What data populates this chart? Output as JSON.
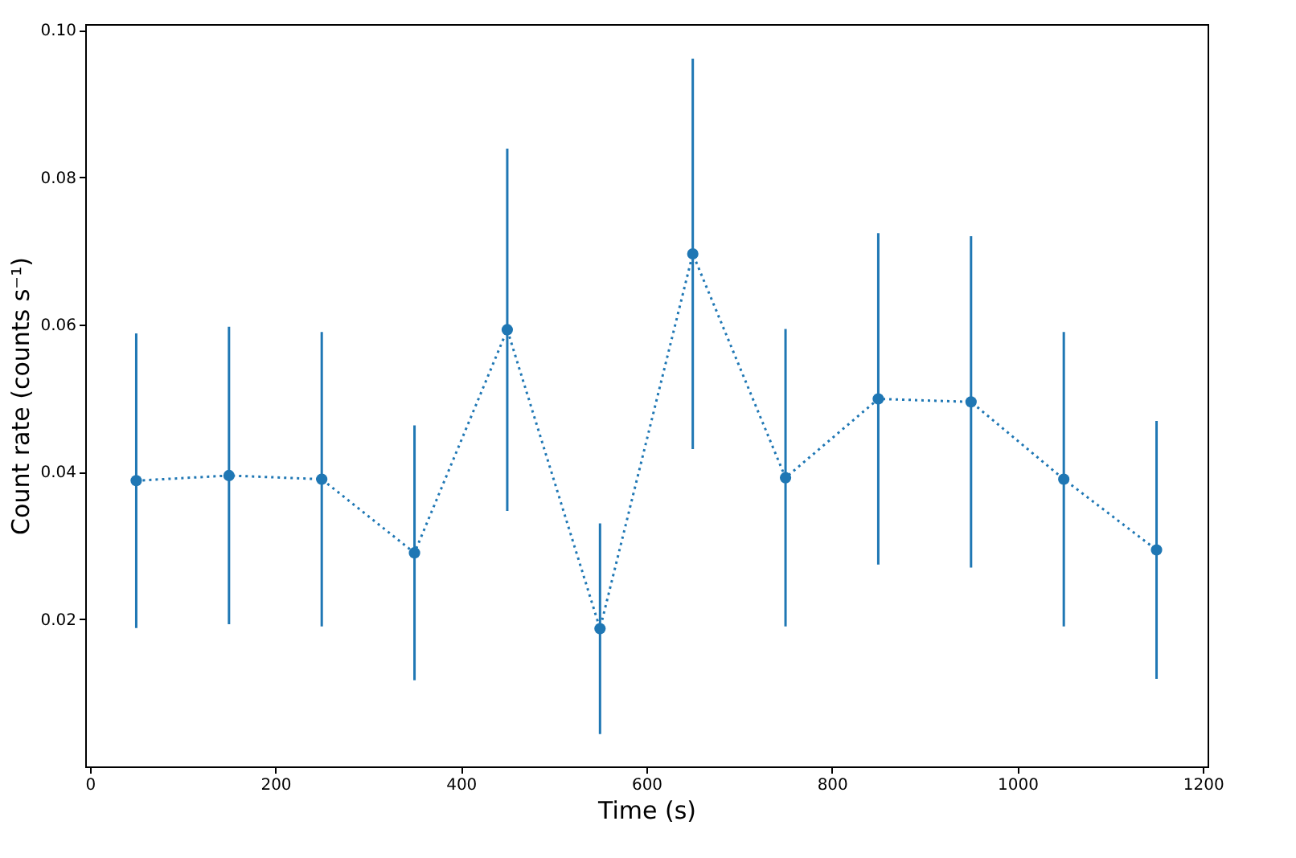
{
  "chart_data": {
    "type": "line",
    "xlabel": "Time (s)",
    "ylabel": "Count rate (counts s⁻¹)",
    "x": [
      50,
      150,
      250,
      350,
      450,
      550,
      650,
      750,
      850,
      950,
      1050,
      1150
    ],
    "series": [
      {
        "color": "#1f77b4",
        "values": [
          0.0388,
          0.0395,
          0.039,
          0.029,
          0.0593,
          0.0187,
          0.0696,
          0.0392,
          0.0499,
          0.0495,
          0.039,
          0.0294
        ],
        "errors": [
          0.02,
          0.0202,
          0.02,
          0.0173,
          0.0246,
          0.0143,
          0.0265,
          0.0202,
          0.0225,
          0.0225,
          0.02,
          0.0175
        ]
      }
    ],
    "marker": "circle",
    "line_style": "dotted",
    "grid": false,
    "xlim": [
      -5,
      1205
    ],
    "ylim": [
      0,
      0.1008
    ],
    "xticks": [
      0,
      200,
      400,
      600,
      800,
      1000,
      1200
    ],
    "yticks": [
      0.02,
      0.04,
      0.06,
      0.08,
      {
        "value": 0.1,
        "label": "0.10"
      }
    ]
  }
}
